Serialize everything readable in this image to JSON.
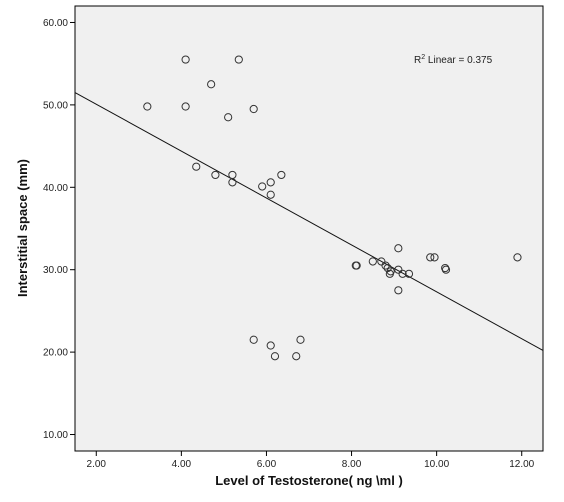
{
  "chart_data": {
    "type": "scatter",
    "title": "",
    "xlabel": "Level of Testosterone( ng \\ml )",
    "ylabel": "Interstitial space (mm)",
    "xlim": [
      1.5,
      12.5
    ],
    "ylim": [
      8.0,
      62.0
    ],
    "xticks": [
      "2.00",
      "4.00",
      "6.00",
      "8.00",
      "10.00",
      "12.00"
    ],
    "yticks": [
      "10.00",
      "20.00",
      "30.00",
      "40.00",
      "50.00",
      "60.00"
    ],
    "xtick_values": [
      2,
      4,
      6,
      8,
      10,
      12
    ],
    "ytick_values": [
      10,
      20,
      30,
      40,
      50,
      60
    ],
    "grid": false,
    "background_color": "#f0f0f0",
    "marker_color": "#333333",
    "fit_line": {
      "x": [
        1.5,
        12.5
      ],
      "y": [
        51.5,
        20.2
      ]
    },
    "annotation": {
      "prefix": "R",
      "superscript": "2",
      "suffix": " Linear = 0.375"
    },
    "points": [
      {
        "x": 3.2,
        "y": 49.8
      },
      {
        "x": 4.1,
        "y": 55.5
      },
      {
        "x": 4.1,
        "y": 49.8
      },
      {
        "x": 4.7,
        "y": 52.5
      },
      {
        "x": 5.1,
        "y": 48.5
      },
      {
        "x": 5.35,
        "y": 55.5
      },
      {
        "x": 5.7,
        "y": 49.5
      },
      {
        "x": 4.35,
        "y": 42.5
      },
      {
        "x": 4.8,
        "y": 41.5
      },
      {
        "x": 5.2,
        "y": 41.5
      },
      {
        "x": 5.2,
        "y": 40.6
      },
      {
        "x": 5.9,
        "y": 40.1
      },
      {
        "x": 6.1,
        "y": 40.6
      },
      {
        "x": 6.1,
        "y": 39.1
      },
      {
        "x": 6.35,
        "y": 41.5
      },
      {
        "x": 5.7,
        "y": 21.5
      },
      {
        "x": 6.1,
        "y": 20.8
      },
      {
        "x": 6.2,
        "y": 19.5
      },
      {
        "x": 6.7,
        "y": 19.5
      },
      {
        "x": 6.8,
        "y": 21.5
      },
      {
        "x": 8.1,
        "y": 30.5
      },
      {
        "x": 8.12,
        "y": 30.5
      },
      {
        "x": 8.5,
        "y": 31.0
      },
      {
        "x": 8.7,
        "y": 31.0
      },
      {
        "x": 8.8,
        "y": 30.5
      },
      {
        "x": 8.85,
        "y": 30.2
      },
      {
        "x": 8.9,
        "y": 29.5
      },
      {
        "x": 8.92,
        "y": 29.8
      },
      {
        "x": 9.1,
        "y": 32.6
      },
      {
        "x": 9.1,
        "y": 30.0
      },
      {
        "x": 9.2,
        "y": 29.5
      },
      {
        "x": 9.35,
        "y": 29.5
      },
      {
        "x": 9.1,
        "y": 27.5
      },
      {
        "x": 9.85,
        "y": 31.5
      },
      {
        "x": 9.95,
        "y": 31.5
      },
      {
        "x": 10.2,
        "y": 30.2
      },
      {
        "x": 10.22,
        "y": 30.0
      },
      {
        "x": 11.9,
        "y": 31.5
      }
    ]
  }
}
